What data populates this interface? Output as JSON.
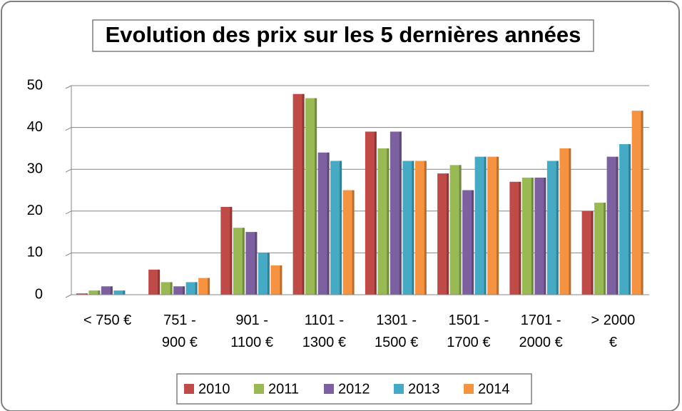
{
  "chart_data": {
    "type": "bar",
    "title": "Evolution des prix sur les 5 dernières années",
    "categories": [
      "< 750 €",
      "751 - 900 €",
      "901 - 1100 €",
      "1101 - 1300 €",
      "1301 - 1500 €",
      "1501 - 1700 €",
      "1701 - 2000 €",
      "> 2000 €"
    ],
    "series": [
      {
        "name": "2010",
        "color": "#be4b48",
        "values": [
          0.3,
          6,
          21,
          48,
          39,
          29,
          27,
          20
        ]
      },
      {
        "name": "2011",
        "color": "#98b954",
        "values": [
          1,
          3,
          16,
          47,
          35,
          31,
          28,
          22
        ]
      },
      {
        "name": "2012",
        "color": "#7d60a0",
        "values": [
          2,
          2,
          15,
          34,
          39,
          25,
          28,
          33
        ]
      },
      {
        "name": "2013",
        "color": "#46aac5",
        "values": [
          1,
          3,
          10,
          32,
          32,
          33,
          32,
          36
        ]
      },
      {
        "name": "2014",
        "color": "#f59343",
        "values": [
          0,
          4,
          7,
          25,
          32,
          33,
          35,
          44
        ]
      }
    ],
    "ylim": [
      0,
      50
    ],
    "yticks": [
      0,
      10,
      20,
      30,
      40,
      50
    ],
    "grid": true,
    "legend": "bottom"
  }
}
